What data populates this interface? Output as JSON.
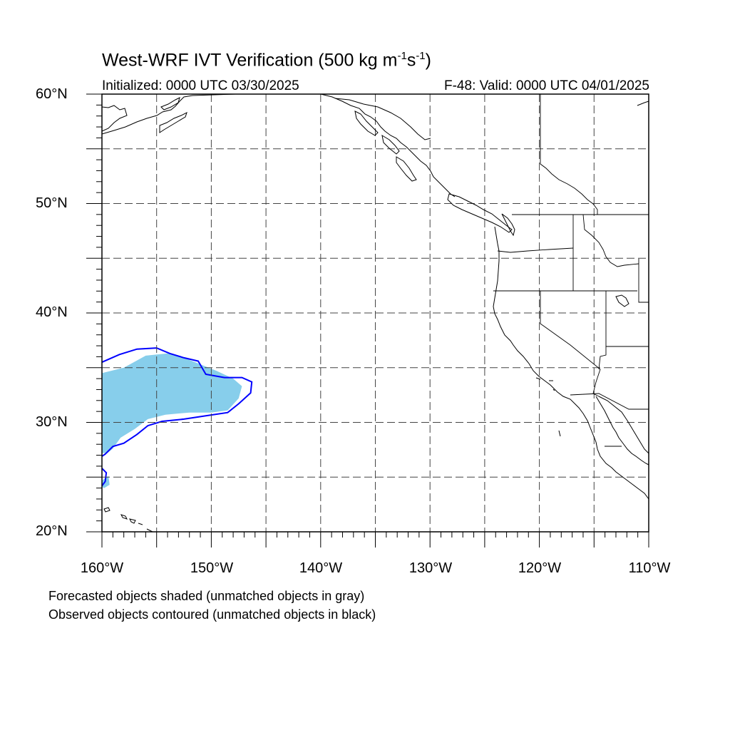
{
  "title": {
    "main": "West-WRF IVT Verification (500 kg m",
    "exp1": "-1",
    "mid": "s",
    "exp2": "-1",
    "close": ")"
  },
  "initialized": "Initialized: 0000 UTC 03/30/2025",
  "valid": "F-48: Valid: 0000 UTC 04/01/2025",
  "map": {
    "extent": {
      "lon_min": -160,
      "lon_max": -110,
      "lat_min": 20,
      "lat_max": 60
    },
    "lat_labels": [
      "20°N",
      "30°N",
      "40°N",
      "50°N",
      "60°N"
    ],
    "lon_labels": [
      "160°W",
      "150°W",
      "140°W",
      "130°W",
      "120°W",
      "110°W"
    ],
    "gridlines": "dashed every 5°",
    "colors": {
      "forecast_matched_fill": "#87ceeb",
      "observed_matched_contour": "#0000ff",
      "coastline": "#000000"
    },
    "forecast_object": {
      "status": "matched",
      "lonlat": [
        [
          -160,
          34.5
        ],
        [
          -158,
          35
        ],
        [
          -156,
          36.1
        ],
        [
          -154,
          36.3
        ],
        [
          -152.5,
          35.9
        ],
        [
          -151,
          35.3
        ],
        [
          -149.5,
          34.7
        ],
        [
          -148,
          34
        ],
        [
          -147.2,
          33.3
        ],
        [
          -147.5,
          32.2
        ],
        [
          -148.5,
          31.1
        ],
        [
          -150,
          30.9
        ],
        [
          -152,
          30.9
        ],
        [
          -154.2,
          30.7
        ],
        [
          -155.8,
          30.3
        ],
        [
          -157,
          29.4
        ],
        [
          -158.3,
          28.6
        ],
        [
          -159,
          27.6
        ],
        [
          -159.5,
          27.2
        ],
        [
          -160,
          27.2
        ]
      ]
    },
    "forecast_object_small": {
      "status": "matched",
      "lonlat": [
        [
          -160,
          24.7
        ],
        [
          -159.4,
          25.1
        ],
        [
          -159.3,
          24.3
        ],
        [
          -159.8,
          24
        ],
        [
          -160,
          24.1
        ]
      ]
    },
    "observed_object": {
      "status": "matched",
      "lonlat": [
        [
          -160,
          35.5
        ],
        [
          -158.4,
          36.2
        ],
        [
          -156.8,
          36.7
        ],
        [
          -155,
          36.8
        ],
        [
          -153.8,
          36.3
        ],
        [
          -152.5,
          35.9
        ],
        [
          -151.2,
          35.6
        ],
        [
          -150.5,
          34.4
        ],
        [
          -148.8,
          34.1
        ],
        [
          -147.2,
          34.1
        ],
        [
          -146.3,
          33.7
        ],
        [
          -146.4,
          32.7
        ],
        [
          -147.5,
          31.7
        ],
        [
          -148.5,
          30.9
        ],
        [
          -150.5,
          30.6
        ],
        [
          -152.5,
          30.3
        ],
        [
          -154.5,
          30.1
        ],
        [
          -155.8,
          29.7
        ],
        [
          -156.8,
          28.9
        ],
        [
          -158,
          28.1
        ],
        [
          -159,
          27.8
        ],
        [
          -159.7,
          27.1
        ],
        [
          -160,
          26.9
        ]
      ]
    },
    "observed_object_small": {
      "status": "matched",
      "lonlat": [
        [
          -160,
          25.8
        ],
        [
          -159.6,
          25.4
        ],
        [
          -159.7,
          24.6
        ],
        [
          -160,
          24.2
        ]
      ]
    }
  },
  "notes": {
    "forecast": "Forecasted objects shaded (unmatched objects in gray)",
    "observed": "Observed objects contoured (unmatched objects in black)"
  }
}
